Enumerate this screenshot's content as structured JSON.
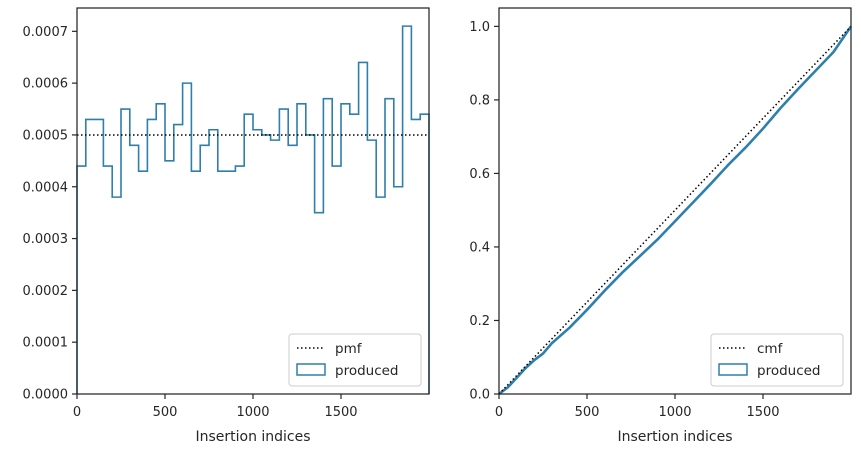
{
  "chart_data": [
    {
      "type": "histogram-step",
      "xlabel": "Insertion indices",
      "ylabel": "",
      "xlim": [
        0,
        2000
      ],
      "ylim": [
        0,
        0.000745
      ],
      "xticks": [
        0,
        500,
        1000,
        1500
      ],
      "xtick_labels": [
        "0",
        "500",
        "1000",
        "1500"
      ],
      "yticks": [
        0,
        0.0001,
        0.0002,
        0.0003,
        0.0004,
        0.0005,
        0.0006,
        0.0007
      ],
      "ytick_labels": [
        "0.0000",
        "0.0001",
        "0.0002",
        "0.0003",
        "0.0004",
        "0.0005",
        "0.0006",
        "0.0007"
      ],
      "grid": false,
      "legend_position": "lower-right",
      "reference": {
        "name": "pmf",
        "value": 0.0005,
        "style": "dotted",
        "color": "#000000"
      },
      "series": [
        {
          "name": "produced",
          "color": "#2f7fac",
          "bin_edges": [
            0,
            50,
            150,
            200,
            250,
            300,
            350,
            400,
            450,
            500,
            550,
            600,
            650,
            700,
            750,
            800,
            900,
            950,
            1000,
            1050,
            1100,
            1150,
            1200,
            1250,
            1300,
            1350,
            1400,
            1450,
            1500,
            1550,
            1600,
            1650,
            1700,
            1750,
            1800,
            1850,
            1900,
            1950,
            2000
          ],
          "values": [
            0.00044,
            0.00053,
            0.00044,
            0.00038,
            0.00055,
            0.00048,
            0.00043,
            0.00053,
            0.00056,
            0.00045,
            0.00052,
            0.0006,
            0.00043,
            0.00048,
            0.00051,
            0.00043,
            0.00044,
            0.00054,
            0.00051,
            0.0005,
            0.00049,
            0.00055,
            0.00048,
            0.00056,
            0.0005,
            0.00035,
            0.00057,
            0.00044,
            0.00056,
            0.00054,
            0.00064,
            0.00049,
            0.00038,
            0.00057,
            0.0004,
            0.00071,
            0.00053,
            0.00054
          ]
        }
      ]
    },
    {
      "type": "line",
      "xlabel": "Insertion indices",
      "ylabel": "",
      "xlim": [
        0,
        2000
      ],
      "ylim": [
        0,
        1.05
      ],
      "xticks": [
        0,
        500,
        1000,
        1500
      ],
      "xtick_labels": [
        "0",
        "500",
        "1000",
        "1500"
      ],
      "yticks": [
        0,
        0.2,
        0.4,
        0.6,
        0.8,
        1.0
      ],
      "ytick_labels": [
        "0.0",
        "0.2",
        "0.4",
        "0.6",
        "0.8",
        "1.0"
      ],
      "grid": false,
      "legend_position": "lower-right",
      "reference": {
        "name": "cmf",
        "points": [
          [
            0,
            0
          ],
          [
            2000,
            1
          ]
        ],
        "style": "dotted",
        "color": "#000000"
      },
      "series": [
        {
          "name": "produced",
          "color": "#2f7fac",
          "x": [
            0,
            50,
            100,
            150,
            200,
            250,
            300,
            400,
            500,
            600,
            700,
            800,
            900,
            1000,
            1100,
            1200,
            1300,
            1400,
            1500,
            1600,
            1700,
            1800,
            1900,
            2000
          ],
          "y": [
            0,
            0.018,
            0.044,
            0.07,
            0.092,
            0.11,
            0.138,
            0.18,
            0.229,
            0.281,
            0.33,
            0.375,
            0.42,
            0.47,
            0.52,
            0.57,
            0.622,
            0.67,
            0.722,
            0.778,
            0.83,
            0.88,
            0.93,
            1.0
          ]
        }
      ]
    }
  ],
  "legends": [
    {
      "line_label": "pmf",
      "patch_label": "produced"
    },
    {
      "line_label": "cmf",
      "patch_label": "produced"
    }
  ]
}
